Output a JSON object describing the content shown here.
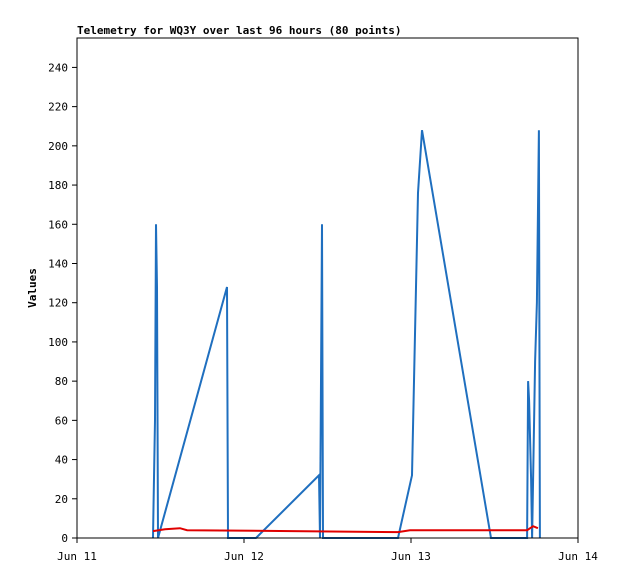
{
  "chart_data": {
    "type": "line",
    "title": "Telemetry for WQ3Y over last 96 hours (80 points)",
    "y_label": "Values",
    "xlim": [
      0,
      3
    ],
    "xticks": [
      {
        "value": 0,
        "label": "Jun 11"
      },
      {
        "value": 1,
        "label": "Jun 12"
      },
      {
        "value": 2,
        "label": "Jun 13"
      },
      {
        "value": 3,
        "label": "Jun 14"
      }
    ],
    "ylim": [
      0,
      255
    ],
    "yticks": [
      0,
      20,
      40,
      60,
      80,
      100,
      120,
      140,
      160,
      180,
      200,
      220,
      240
    ],
    "series": [
      {
        "color": "#1f6fbf",
        "x": [
          0.455,
          0.458,
          0.467,
          0.473,
          0.479,
          0.485,
          0.898,
          0.904,
          0.91,
          1.072,
          1.449,
          1.455,
          1.467,
          1.473,
          1.922,
          2.006,
          2.042,
          2.066,
          2.479,
          2.695,
          2.701,
          2.707,
          2.719,
          2.725,
          2.743,
          2.754,
          2.766,
          2.772
        ],
        "values": [
          0,
          16,
          60,
          160,
          128,
          0,
          128,
          0,
          0,
          0,
          32,
          0,
          160,
          0,
          0,
          32,
          176,
          208,
          0,
          0,
          80,
          70,
          30,
          0,
          90,
          120,
          208,
          0
        ]
      },
      {
        "color": "#e00000",
        "x": [
          0.455,
          0.527,
          0.617,
          0.659,
          1.922,
          1.994,
          2.695,
          2.731,
          2.76
        ],
        "values": [
          3.5,
          4.5,
          5,
          4,
          3,
          4,
          4,
          6,
          5
        ]
      }
    ]
  }
}
